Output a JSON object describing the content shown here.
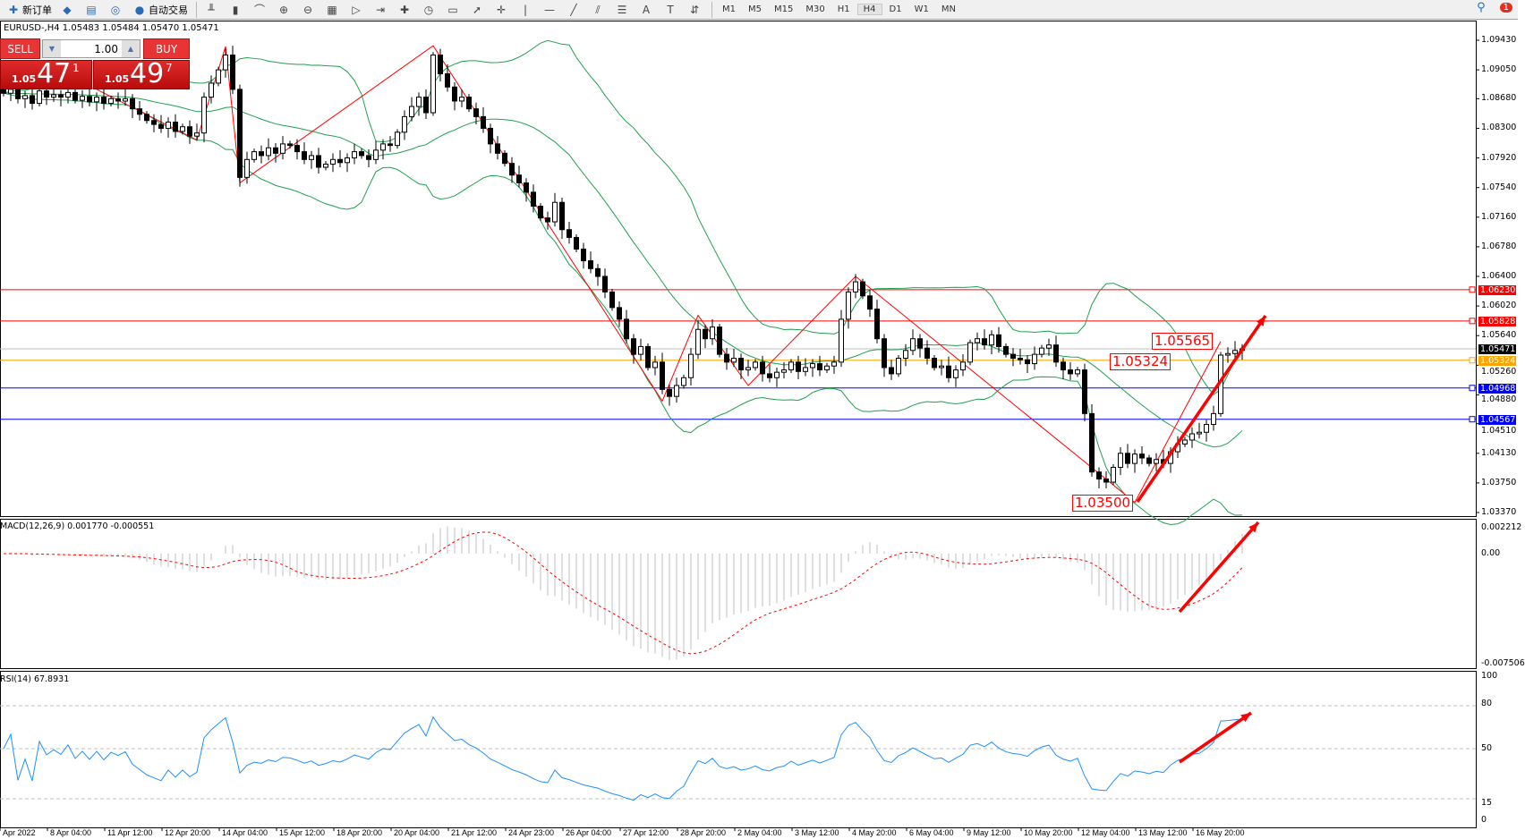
{
  "toolbar": {
    "items": [
      {
        "icon": "new-order-icon",
        "label": "新订单"
      },
      {
        "icon": "market-watch-icon",
        "label": ""
      },
      {
        "icon": "data-window-icon",
        "label": ""
      },
      {
        "icon": "signals-icon",
        "label": ""
      },
      {
        "icon": "auto-trading-icon",
        "label": "自动交易"
      }
    ],
    "chart_tools": [
      "bar-chart-icon",
      "candlestick-icon",
      "line-chart-icon",
      "zoom-in-icon",
      "zoom-out-icon",
      "tile-windows-icon",
      "auto-scroll-icon",
      "chart-shift-icon",
      "indicators-icon",
      "periods-icon",
      "templates-icon",
      "cursor-icon",
      "crosshair-icon",
      "vertical-line-icon",
      "horizontal-line-icon",
      "trendline-icon",
      "equidistant-channel-icon",
      "fibonacci-icon",
      "text-icon",
      "text-label-icon",
      "arrows-icon"
    ],
    "timeframes": [
      "M1",
      "M5",
      "M15",
      "M30",
      "H1",
      "H4",
      "D1",
      "W1",
      "MN"
    ],
    "active_timeframe": "H4",
    "notification_count": "1"
  },
  "chart": {
    "title": "EURUSD-,H4  1.05483 1.05484 1.05470 1.05471",
    "sell_label": "SELL",
    "buy_label": "BUY",
    "lot": "1.00",
    "sell_price": {
      "small": "1.05",
      "big": "47",
      "pip": "1"
    },
    "buy_price": {
      "small": "1.05",
      "big": "49",
      "pip": "7"
    },
    "macd_label": "MACD(12,26,9) 0.001770 -0.000551",
    "rsi_label": "RSI(14) 67.8931",
    "notes": [
      "1.05565",
      "1.05324",
      "1.03500"
    ]
  },
  "chart_data": {
    "type": "candlestick",
    "symbol": "EURUSD-",
    "timeframe": "H4",
    "price_axis_ticks": [
      "1.09430",
      "1.09050",
      "1.08680",
      "1.08300",
      "1.07920",
      "1.07540",
      "1.07160",
      "1.06780",
      "1.06400",
      "1.06020",
      "1.05640",
      "1.05260",
      "1.04880",
      "1.04510",
      "1.04130",
      "1.03750",
      "1.03370"
    ],
    "price_range": [
      1.0337,
      1.0943
    ],
    "time_labels": [
      "Apr 2022",
      "8 Apr 04:00",
      "11 Apr 12:00",
      "12 Apr 20:00",
      "14 Apr 04:00",
      "15 Apr 12:00",
      "18 Apr 20:00",
      "20 Apr 04:00",
      "21 Apr 12:00",
      "24 Apr 23:00",
      "26 Apr 04:00",
      "27 Apr 12:00",
      "28 Apr 20:00",
      "2 May 04:00",
      "3 May 12:00",
      "4 May 20:00",
      "6 May 04:00",
      "9 May 12:00",
      "10 May 20:00",
      "12 May 04:00",
      "13 May 12:00",
      "16 May 20:00"
    ],
    "close": [
      1.0875,
      1.088,
      1.0868,
      1.0872,
      1.0862,
      1.0878,
      1.087,
      1.0873,
      1.087,
      1.0876,
      1.0866,
      1.0871,
      1.0864,
      1.087,
      1.0862,
      1.0868,
      1.0865,
      1.0868,
      1.0855,
      1.0848,
      1.084,
      1.0835,
      1.083,
      1.0838,
      1.0826,
      1.0832,
      1.082,
      1.0824,
      1.087,
      1.0888,
      1.0905,
      1.0924,
      1.088,
      1.0767,
      1.079,
      1.08,
      1.0795,
      1.0805,
      1.0798,
      1.081,
      1.0808,
      1.08,
      1.079,
      1.0795,
      1.078,
      1.0784,
      1.079,
      1.0786,
      1.0792,
      1.08,
      1.0795,
      1.079,
      1.0802,
      1.081,
      1.0808,
      1.0825,
      1.0845,
      1.0858,
      1.087,
      1.085,
      1.0924,
      1.09,
      1.0883,
      1.0865,
      1.087,
      1.0855,
      1.0845,
      1.083,
      1.081,
      1.0798,
      1.0785,
      1.077,
      1.076,
      1.0748,
      1.073,
      1.0715,
      1.071,
      1.0735,
      1.07,
      1.069,
      1.0675,
      1.066,
      1.065,
      1.064,
      1.062,
      1.06,
      1.0585,
      1.056,
      1.054,
      1.055,
      1.0523,
      1.053,
      1.0495,
      1.0486,
      1.05,
      1.051,
      1.054,
      1.0572,
      1.056,
      1.0575,
      1.054,
      1.053,
      1.0535,
      1.052,
      1.0523,
      1.053,
      1.0515,
      1.051,
      1.0517,
      1.052,
      1.053,
      1.0518,
      1.0523,
      1.0528,
      1.052,
      1.0525,
      1.053,
      1.0585,
      1.062,
      1.0633,
      1.0615,
      1.0598,
      1.056,
      1.0523,
      1.0515,
      1.0535,
      1.0545,
      1.056,
      1.0548,
      1.0535,
      1.0523,
      1.0525,
      1.051,
      1.052,
      1.053,
      1.0555,
      1.056,
      1.0552,
      1.0565,
      1.055,
      1.054,
      1.0535,
      1.0533,
      1.0528,
      1.054,
      1.0548,
      1.0552,
      1.053,
      1.052,
      1.0515,
      1.052,
      1.0464,
      1.0389,
      1.038,
      1.0376,
      1.0395,
      1.0413,
      1.04,
      1.0412,
      1.0407,
      1.04,
      1.0405,
      1.04,
      1.0415,
      1.0425,
      1.043,
      1.0438,
      1.044,
      1.045,
      1.0464,
      1.0539,
      1.0541,
      1.0545,
      1.0547
    ],
    "indicators": {
      "bollinger": {
        "period": 20,
        "deviation": 2,
        "color": "#20a050"
      },
      "macd": {
        "fast": 12,
        "slow": 26,
        "signal": 9,
        "value": "0.001770",
        "signal_value": "-0.000551",
        "range": [
          -0.007506,
          0.002212
        ],
        "ticks": [
          "0.002212",
          "0.00",
          "-0.007506"
        ]
      },
      "rsi": {
        "period": 14,
        "value": "67.8931",
        "levels": [
          80,
          50,
          15
        ],
        "ticks": [
          "100",
          "80",
          "50",
          "15",
          "0"
        ]
      }
    },
    "zigzag": [
      [
        13,
        1.088
      ],
      [
        27,
        1.0815
      ],
      [
        31,
        1.0935
      ],
      [
        33,
        1.076
      ],
      [
        60,
        1.0936
      ],
      [
        92,
        1.048
      ],
      [
        97,
        1.059
      ],
      [
        104,
        1.05
      ],
      [
        119,
        1.064
      ],
      [
        158,
        1.035
      ],
      [
        170,
        1.05565
      ]
    ],
    "horizontal_lines": [
      {
        "price": "1.06230",
        "color": "#ff0000"
      },
      {
        "price": "1.05828",
        "color": "#ff0000"
      },
      {
        "price": "1.05471",
        "color": "#c0c0c0",
        "label_bg": "#000000"
      },
      {
        "price": "1.05324",
        "color": "#ffa500"
      },
      {
        "price": "1.04968",
        "color": "#0000ff"
      },
      {
        "price": "1.04567",
        "color": "#0000ff"
      }
    ],
    "colors": {
      "bull": "#ffffff",
      "bear": "#000000",
      "signal": "#ff0000",
      "histogram": "#c0c0c0",
      "rsi": "#1e90ff",
      "arrow": "#ff0000"
    }
  }
}
